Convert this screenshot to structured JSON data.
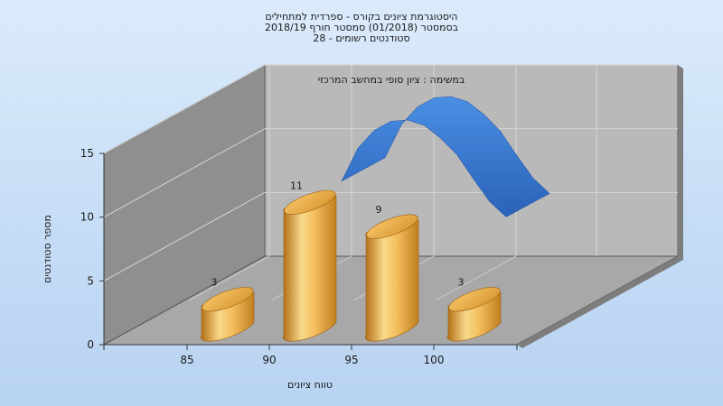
{
  "chart_data": {
    "type": "bar",
    "title_lines": [
      "היסטוגרמת ציונים בקורס - ספרדית למתחילים",
      "בסמסטר  (01/2018)  סמסטר חורף 2018/19",
      "סטודנטים רשומים - 28"
    ],
    "annotation": "במשימה : ציון סופי במחשב המרכזי",
    "xlabel": "טווח ציונים",
    "ylabel": "מספר סטודנטים",
    "x_ticks": [
      "85",
      "90",
      "95",
      "100"
    ],
    "y_ticks": [
      "0",
      "5",
      "10",
      "15"
    ],
    "ylim": [
      0,
      15
    ],
    "grid": true,
    "bars": [
      {
        "x": 85,
        "value": 3,
        "label": "3"
      },
      {
        "x": 90,
        "value": 11,
        "label": "11"
      },
      {
        "x": 95,
        "value": 9,
        "label": "9"
      },
      {
        "x": 100,
        "value": 3,
        "label": "3"
      }
    ],
    "curve": {
      "x": [
        90,
        91,
        92,
        93,
        94,
        95,
        96,
        97,
        98,
        99,
        100
      ],
      "values": [
        10.2,
        12.8,
        14.2,
        14.9,
        15.0,
        14.6,
        13.6,
        12.3,
        10.4,
        8.6,
        7.4
      ]
    },
    "colors": {
      "bar": "#e8a23c",
      "bar_light": "#f9d98a",
      "bar_dark": "#b26e16",
      "curve": "#3a7fd6",
      "wall": "#8e8e8e",
      "back_wall": "#b8b8b8",
      "floor": "#a9a9a9"
    }
  }
}
